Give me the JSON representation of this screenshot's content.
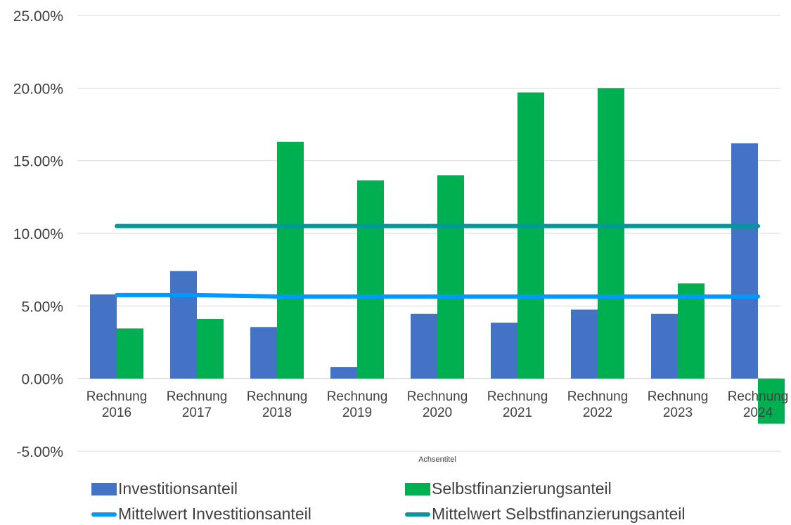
{
  "chart_data": {
    "type": "bar",
    "title": "",
    "xlabel": "Achsentitel",
    "ylabel": "",
    "ylim": [
      -5,
      25
    ],
    "yticks": [
      -5,
      0,
      5,
      10,
      15,
      20,
      25
    ],
    "ytick_labels": [
      "-5.00%",
      "0.00%",
      "5.00%",
      "10.00%",
      "15.00%",
      "20.00%",
      "25.00%"
    ],
    "categories": [
      [
        "Rechnung",
        "2016"
      ],
      [
        "Rechnung",
        "2017"
      ],
      [
        "Rechnung",
        "2018"
      ],
      [
        "Rechnung",
        "2019"
      ],
      [
        "Rechnung",
        "2020"
      ],
      [
        "Rechnung",
        "2021"
      ],
      [
        "Rechnung",
        "2022"
      ],
      [
        "Rechnung",
        "2023"
      ],
      [
        "Rechnung",
        "2024"
      ]
    ],
    "series": [
      {
        "name": "Investitionsanteil",
        "kind": "bar",
        "color": "#4472C4",
        "values": [
          5.8,
          7.4,
          3.55,
          0.8,
          4.45,
          3.85,
          4.75,
          4.45,
          16.2
        ]
      },
      {
        "name": "Selbstfinanzierungsanteil",
        "kind": "bar",
        "color": "#00B050",
        "values": [
          3.45,
          4.1,
          16.3,
          13.65,
          14.0,
          19.7,
          20.0,
          6.55,
          -3.1
        ]
      },
      {
        "name": "Mittelwert Investitionsanteil",
        "kind": "line",
        "color": "#0099FF",
        "values": [
          5.75,
          5.75,
          5.65,
          5.65,
          5.65,
          5.65,
          5.65,
          5.65,
          5.65
        ]
      },
      {
        "name": "Mittelwert Selbstfinanzierungsanteil",
        "kind": "line",
        "color": "#009999",
        "values": [
          10.5,
          10.5,
          10.5,
          10.5,
          10.5,
          10.5,
          10.5,
          10.5,
          10.5
        ]
      }
    ],
    "grid": true,
    "legend_position": "bottom"
  }
}
